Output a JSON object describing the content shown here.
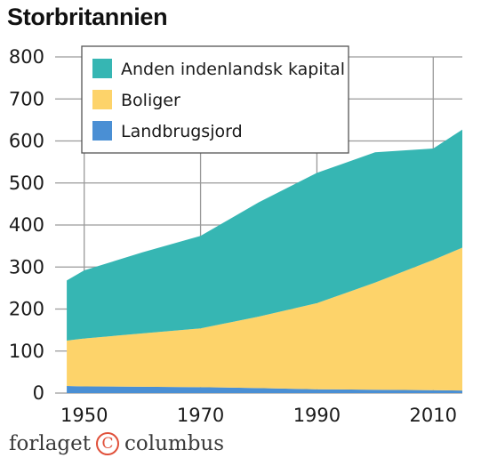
{
  "page_title": "Storbritannien",
  "footer": {
    "left": "forlaget",
    "right": "columbus",
    "icon": "copyright-icon"
  },
  "chart_data": {
    "type": "area",
    "stacked": true,
    "title": "Storbritannien",
    "xlabel": "",
    "ylabel": "",
    "x": [
      1945,
      1950,
      1960,
      1970,
      1980,
      1990,
      2000,
      2010,
      2015
    ],
    "xlim": [
      1945,
      2015
    ],
    "ylim": [
      0,
      800
    ],
    "yticks": [
      "0",
      "100",
      "200",
      "300",
      "400",
      "500",
      "600",
      "700",
      "800"
    ],
    "xticks": [
      "1950",
      "1970",
      "1990",
      "2010"
    ],
    "xtick_values": [
      1950,
      1970,
      1990,
      2010
    ],
    "grid": true,
    "legend_position": "top-left",
    "series": [
      {
        "name": "Landbrugsjord",
        "color": "#4a8fd4",
        "values": [
          17,
          16,
          15,
          14,
          12,
          9,
          8,
          7,
          6
        ]
      },
      {
        "name": "Boliger",
        "color": "#fdd36a",
        "values": [
          108,
          114,
          127,
          140,
          170,
          205,
          255,
          310,
          340
        ]
      },
      {
        "name": "Anden indenlandsk kapital",
        "color": "#36b6b3",
        "values": [
          143,
          162,
          193,
          220,
          272,
          310,
          310,
          265,
          281
        ]
      }
    ],
    "legend_order": [
      "Anden indenlandsk kapital",
      "Boliger",
      "Landbrugsjord"
    ]
  }
}
